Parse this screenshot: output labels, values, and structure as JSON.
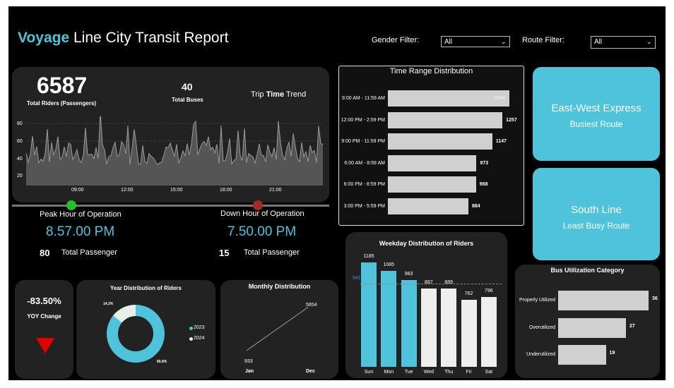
{
  "header": {
    "brand": "Voyage",
    "title_rest": " Line City Transit Report",
    "gender_label": "Gender Filter:",
    "gender_value": "All",
    "route_label": "Route Filter:",
    "route_value": "All"
  },
  "kpi": {
    "total_riders": "6587",
    "total_riders_label": "Total Riders (Passengers)",
    "total_buses": "40",
    "total_buses_label": "Total Buses",
    "trend_title_a": "Trip ",
    "trend_title_b": "Time",
    "trend_title_c": " Trend"
  },
  "trend": {
    "yticks": [
      "80",
      "60",
      "40",
      "20"
    ],
    "xticks": [
      "09:00",
      "12:00",
      "15:00",
      "18:00",
      "21:00"
    ]
  },
  "peak": {
    "title": "Peak Hour of Operation",
    "value": "8.57.00 PM",
    "count": "80",
    "count_label": "Total Passenger"
  },
  "down": {
    "title": "Down Hour of Operation",
    "value": "7.50.00 PM",
    "count": "15",
    "count_label": "Total Passenger"
  },
  "time_range": {
    "title": "Time Range Distribution",
    "rows": [
      {
        "label": "9:00 AM - 11:59 AM",
        "value": 1334
      },
      {
        "label": "12:00 PM - 2:59 PM",
        "value": 1257
      },
      {
        "label": "9:00 PM - 11:59 PM",
        "value": 1147
      },
      {
        "label": "6:00 AM - 8:59 AM",
        "value": 973
      },
      {
        "label": "6:00 PM - 8:59 PM",
        "value": 968
      },
      {
        "label": "3:00 PM - 5:59 PM",
        "value": 884
      }
    ]
  },
  "routes": {
    "busiest_name": "East-West Express",
    "busiest_label": "Busiest Route",
    "least_name": "South Line",
    "least_label": "Least Busy Route"
  },
  "yoy": {
    "value": "-83.50%",
    "label": "YOY Change"
  },
  "year_dist": {
    "title": "Year Distribution of Riders",
    "pct_2023": "85.8%",
    "pct_2024": "14.2%",
    "legend_2023": "2023",
    "legend_2024": "2024",
    "color_2023": "#4fc3d9",
    "color_2024": "#e8efe8"
  },
  "monthly": {
    "title": "Monthly Distribution",
    "start_value": "933",
    "end_value": "5654",
    "start_label": "Jan",
    "end_label": "Dec"
  },
  "chart_data": [
    {
      "type": "bar",
      "title": "Weekday Distribution of Riders",
      "categories": [
        "Sun",
        "Mon",
        "Tue",
        "Wed",
        "Thu",
        "Fri",
        "Sat"
      ],
      "values": [
        1185,
        1085,
        983,
        887,
        889,
        762,
        796
      ],
      "highlight": [
        true,
        true,
        true,
        false,
        false,
        false,
        false
      ],
      "average_label": "941",
      "average": 941,
      "ylim": [
        0,
        1250
      ]
    },
    {
      "type": "bar",
      "title": "Bus Utilization Category",
      "categories": [
        "Properly Utilized",
        "Overutilized",
        "Underutilized"
      ],
      "values": [
        36,
        27,
        19
      ],
      "orientation": "horizontal"
    },
    {
      "type": "bar",
      "title": "Time Range Distribution",
      "categories": [
        "9:00 AM - 11:59 AM",
        "12:00 PM - 2:59 PM",
        "9:00 PM - 11:59 PM",
        "6:00 AM - 8:59 AM",
        "6:00 PM - 8:59 PM",
        "3:00 PM - 5:59 PM"
      ],
      "values": [
        1334,
        1257,
        1147,
        973,
        968,
        884
      ],
      "orientation": "horizontal"
    },
    {
      "type": "line",
      "title": "Monthly Distribution",
      "x": [
        "Jan",
        "Dec"
      ],
      "values": [
        933,
        5654
      ]
    },
    {
      "type": "pie",
      "title": "Year Distribution of Riders",
      "categories": [
        "2023",
        "2024"
      ],
      "values": [
        85.8,
        14.2
      ]
    }
  ]
}
